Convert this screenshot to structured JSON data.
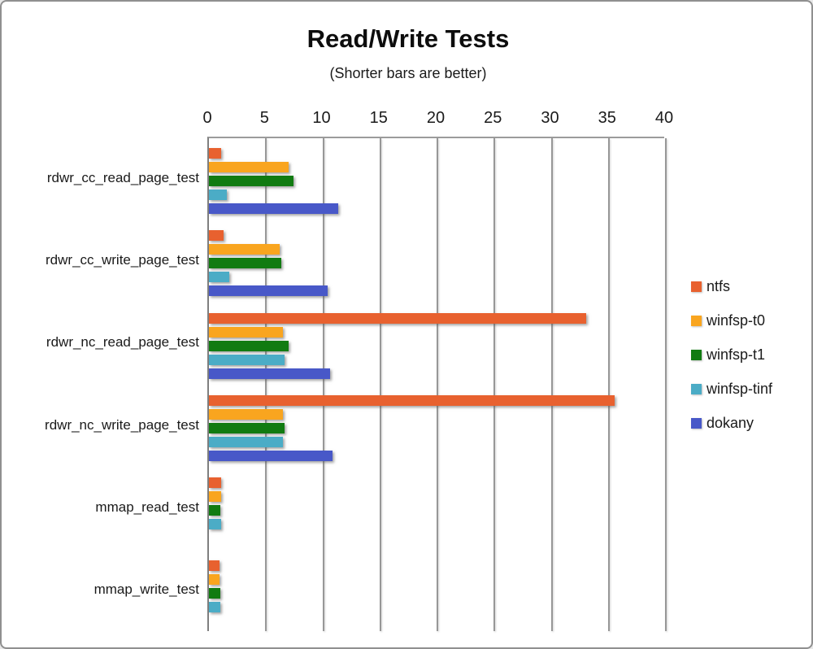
{
  "title": "Read/Write Tests",
  "subtitle": "(Shorter bars are better)",
  "chart_data": {
    "type": "bar",
    "orientation": "horizontal",
    "axis_position": "top",
    "title": "Read/Write Tests",
    "subtitle": "(Shorter bars are better)",
    "xlabel": "",
    "ylabel": "",
    "xlim": [
      0,
      40
    ],
    "xticks": [
      0,
      5,
      10,
      15,
      20,
      25,
      30,
      35,
      40
    ],
    "grid": true,
    "legend_position": "right",
    "categories": [
      "rdwr_cc_read_page_test",
      "rdwr_cc_write_page_test",
      "rdwr_nc_read_page_test",
      "rdwr_nc_write_page_test",
      "mmap_read_test",
      "mmap_write_test"
    ],
    "series": [
      {
        "name": "ntfs",
        "color": "#E8612F",
        "values": [
          1.1,
          1.3,
          33.0,
          35.5,
          1.1,
          0.9
        ]
      },
      {
        "name": "winfsp-t0",
        "color": "#F9A51F",
        "values": [
          7.0,
          6.2,
          6.5,
          6.5,
          1.1,
          0.9
        ]
      },
      {
        "name": "winfsp-t1",
        "color": "#117B11",
        "values": [
          7.4,
          6.3,
          7.0,
          6.6,
          1.0,
          1.0
        ]
      },
      {
        "name": "winfsp-tinf",
        "color": "#4BACC6",
        "values": [
          1.6,
          1.8,
          6.6,
          6.5,
          1.1,
          1.0
        ]
      },
      {
        "name": "dokany",
        "color": "#4858C8",
        "values": [
          11.3,
          10.4,
          10.6,
          10.8,
          0,
          0
        ]
      }
    ]
  }
}
